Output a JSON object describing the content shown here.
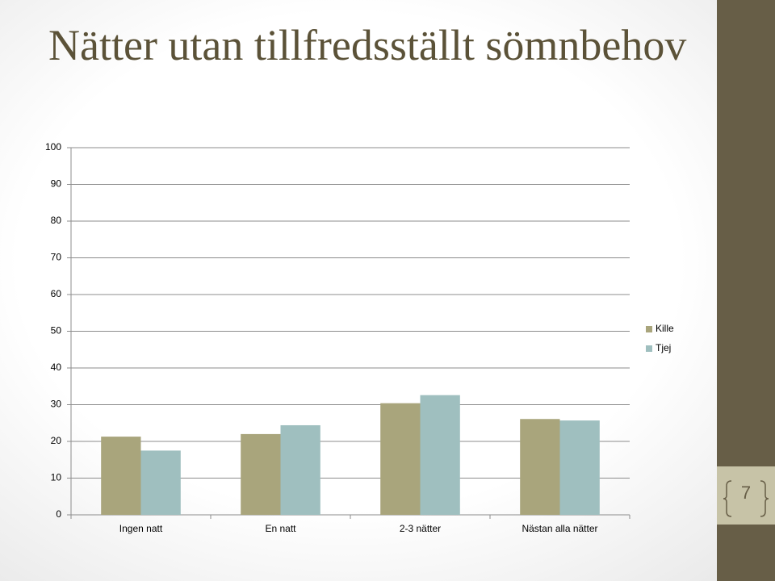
{
  "page_number": 7,
  "chart_data": {
    "type": "bar",
    "title": "Nätter utan tillfredsställt sömnbehov",
    "categories": [
      "Ingen natt",
      "En natt",
      "2-3 nätter",
      "Nästan alla nätter"
    ],
    "series": [
      {
        "name": "Kille",
        "color": "#a9a57c",
        "values": [
          21.3,
          22,
          30.4,
          26.1
        ]
      },
      {
        "name": "Tjej",
        "color": "#9fbfbf",
        "values": [
          17.5,
          24.4,
          32.6,
          25.7
        ]
      }
    ],
    "ylim": [
      0,
      100
    ],
    "yticks": [
      0,
      10,
      20,
      30,
      40,
      50,
      60,
      70,
      80,
      90,
      100
    ],
    "grid": true,
    "legend": "right"
  }
}
